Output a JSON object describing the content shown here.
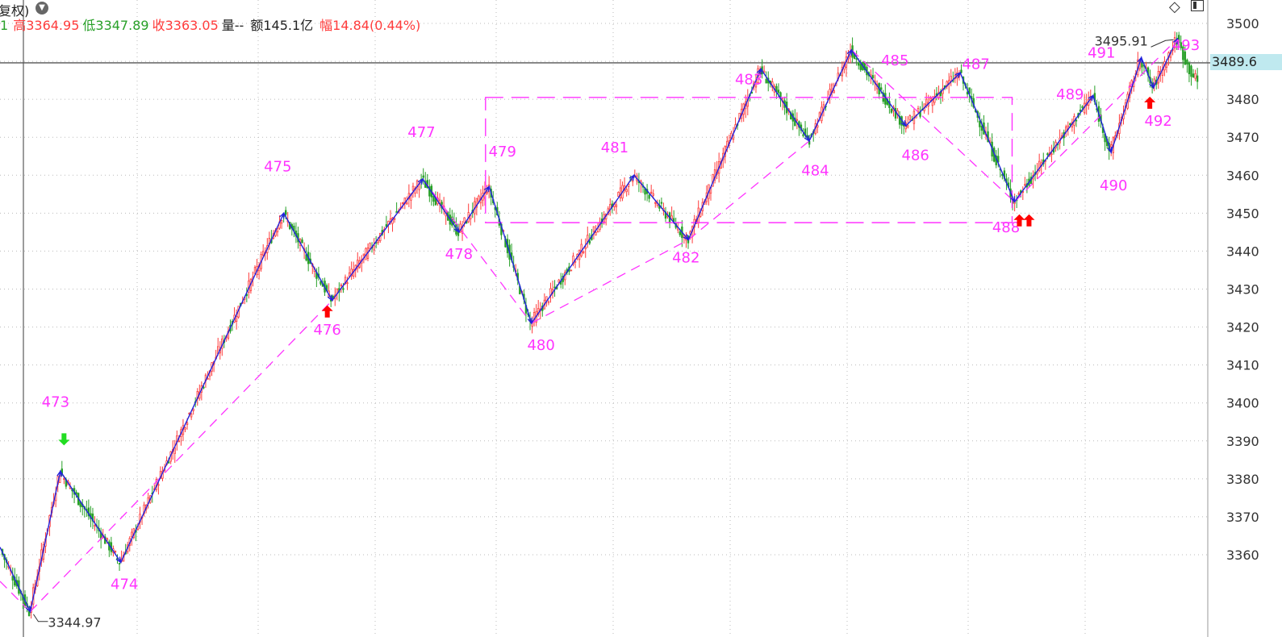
{
  "header": {
    "title_fragment": "复权)",
    "seg_prefix": "1",
    "high_label": "高",
    "high_value": "3364.95",
    "low_label": "低",
    "low_value": "3347.89",
    "close_label": "收",
    "close_value": "3363.05",
    "volume_label": "量--",
    "amount_label": "额",
    "amount_value": "145.1亿",
    "range_label": "幅",
    "range_value": "14.84(0.44%)"
  },
  "icons": {
    "dropdown": "chevron-down-icon",
    "diamond": "diamond-icon",
    "panel": "panel-toggle-icon"
  },
  "current_price_label": "3489.6",
  "colors": {
    "up": "#ff3c3c",
    "down": "#28a028",
    "wave": "#2222dd",
    "marker": "#ff33ff",
    "arrow_up": "#ff0000",
    "arrow_down": "#22dd22",
    "hline": "#555555",
    "grid": "#bbbbbb"
  },
  "chart_data": {
    "type": "candlestick",
    "ylim": [
      3340,
      3505
    ],
    "yticks": [
      3360,
      3370,
      3380,
      3390,
      3400,
      3410,
      3420,
      3430,
      3440,
      3450,
      3460,
      3470,
      3480,
      3490,
      3500
    ],
    "ytick_labels": [
      "3360",
      "3370",
      "3380",
      "3390",
      "3400",
      "3410",
      "3420",
      "3430",
      "3440",
      "3450",
      "3460",
      "3470",
      "3480",
      "3490",
      "3500"
    ],
    "xlim": [
      0,
      100
    ],
    "current_price": 3489.6,
    "low_annotation": {
      "x": 2.5,
      "y": 3344.97,
      "label": "3344.97"
    },
    "high_annotation": {
      "x": 97.3,
      "y": 3495.91,
      "label": "3495.91"
    },
    "price_path": [
      [
        0,
        3362
      ],
      [
        2.5,
        3345
      ],
      [
        5,
        3382
      ],
      [
        10,
        3358
      ],
      [
        23.5,
        3450
      ],
      [
        27.5,
        3427
      ],
      [
        35,
        3459
      ],
      [
        38,
        3445
      ],
      [
        40.5,
        3457
      ],
      [
        44,
        3421
      ],
      [
        52.5,
        3460
      ],
      [
        57,
        3443
      ],
      [
        63,
        3488
      ],
      [
        67,
        3469
      ],
      [
        70.5,
        3493
      ],
      [
        75,
        3473
      ],
      [
        79.5,
        3487
      ],
      [
        84,
        3453
      ],
      [
        90.5,
        3481
      ],
      [
        92,
        3466
      ],
      [
        94.5,
        3491
      ],
      [
        95.5,
        3483
      ],
      [
        97.5,
        3496
      ],
      [
        98.5,
        3488
      ],
      [
        100,
        3481
      ]
    ],
    "wave_points": [
      [
        0,
        3362
      ],
      [
        2.5,
        3345
      ],
      [
        5,
        3382
      ],
      [
        10,
        3358
      ],
      [
        23.5,
        3450
      ],
      [
        27.5,
        3427
      ],
      [
        35,
        3459
      ],
      [
        38,
        3445
      ],
      [
        40.5,
        3457
      ],
      [
        44,
        3421
      ],
      [
        52.5,
        3460
      ],
      [
        57,
        3443
      ],
      [
        63,
        3488
      ],
      [
        67,
        3469
      ],
      [
        70.5,
        3493
      ],
      [
        75,
        3473
      ],
      [
        79.5,
        3487
      ],
      [
        84,
        3453
      ],
      [
        90.5,
        3481
      ],
      [
        92,
        3466
      ],
      [
        94.5,
        3491
      ],
      [
        95.5,
        3483
      ],
      [
        97.5,
        3496
      ]
    ],
    "markers": [
      {
        "label": "473",
        "x": 4.6,
        "y": 3399
      },
      {
        "label": "474",
        "x": 10.3,
        "y": 3351
      },
      {
        "label": "475",
        "x": 23,
        "y": 3461
      },
      {
        "label": "476",
        "x": 27.1,
        "y": 3418
      },
      {
        "label": "477",
        "x": 34.9,
        "y": 3470
      },
      {
        "label": "478",
        "x": 38,
        "y": 3438
      },
      {
        "label": "479",
        "x": 41.6,
        "y": 3465
      },
      {
        "label": "480",
        "x": 44.8,
        "y": 3414
      },
      {
        "label": "481",
        "x": 50.9,
        "y": 3466
      },
      {
        "label": "482",
        "x": 56.8,
        "y": 3437
      },
      {
        "label": "483",
        "x": 62,
        "y": 3484
      },
      {
        "label": "484",
        "x": 67.5,
        "y": 3460
      },
      {
        "label": "485",
        "x": 74.1,
        "y": 3489
      },
      {
        "label": "486",
        "x": 75.8,
        "y": 3464
      },
      {
        "label": "487",
        "x": 80.8,
        "y": 3488
      },
      {
        "label": "488",
        "x": 83.3,
        "y": 3445
      },
      {
        "label": "489",
        "x": 88.6,
        "y": 3480
      },
      {
        "label": "490",
        "x": 92.2,
        "y": 3456
      },
      {
        "label": "491",
        "x": 91.2,
        "y": 3491
      },
      {
        "label": "492",
        "x": 95.9,
        "y": 3473
      },
      {
        "label": "493",
        "x": 98.2,
        "y": 3493
      }
    ],
    "arrows": [
      {
        "dir": "down",
        "x": 5.3,
        "y": 3390.5,
        "double": false
      },
      {
        "dir": "up",
        "x": 27.1,
        "y": 3424,
        "double": false
      },
      {
        "dir": "up",
        "x": 84.4,
        "y": 3448,
        "double": true
      },
      {
        "dir": "up",
        "x": 95.2,
        "y": 3479,
        "double": false
      }
    ],
    "box": {
      "x0": 40.2,
      "x1": 83.8,
      "y0": 3447.5,
      "y1": 3480.5
    },
    "dashed_lines": [
      [
        [
          2.5,
          3345
        ],
        [
          27.5,
          3427
        ]
      ],
      [
        [
          27.5,
          3427
        ],
        [
          35,
          3459
        ]
      ],
      [
        [
          35,
          3459
        ],
        [
          44,
          3421
        ]
      ],
      [
        [
          44,
          3421
        ],
        [
          57,
          3443
        ]
      ],
      [
        [
          57,
          3443
        ],
        [
          67,
          3469
        ]
      ],
      [
        [
          67,
          3469
        ],
        [
          70.5,
          3493
        ]
      ],
      [
        [
          70.5,
          3493
        ],
        [
          84,
          3453
        ]
      ],
      [
        [
          84,
          3453
        ],
        [
          97.5,
          3496
        ]
      ],
      [
        [
          0,
          3353
        ],
        [
          2.5,
          3345
        ]
      ]
    ]
  }
}
